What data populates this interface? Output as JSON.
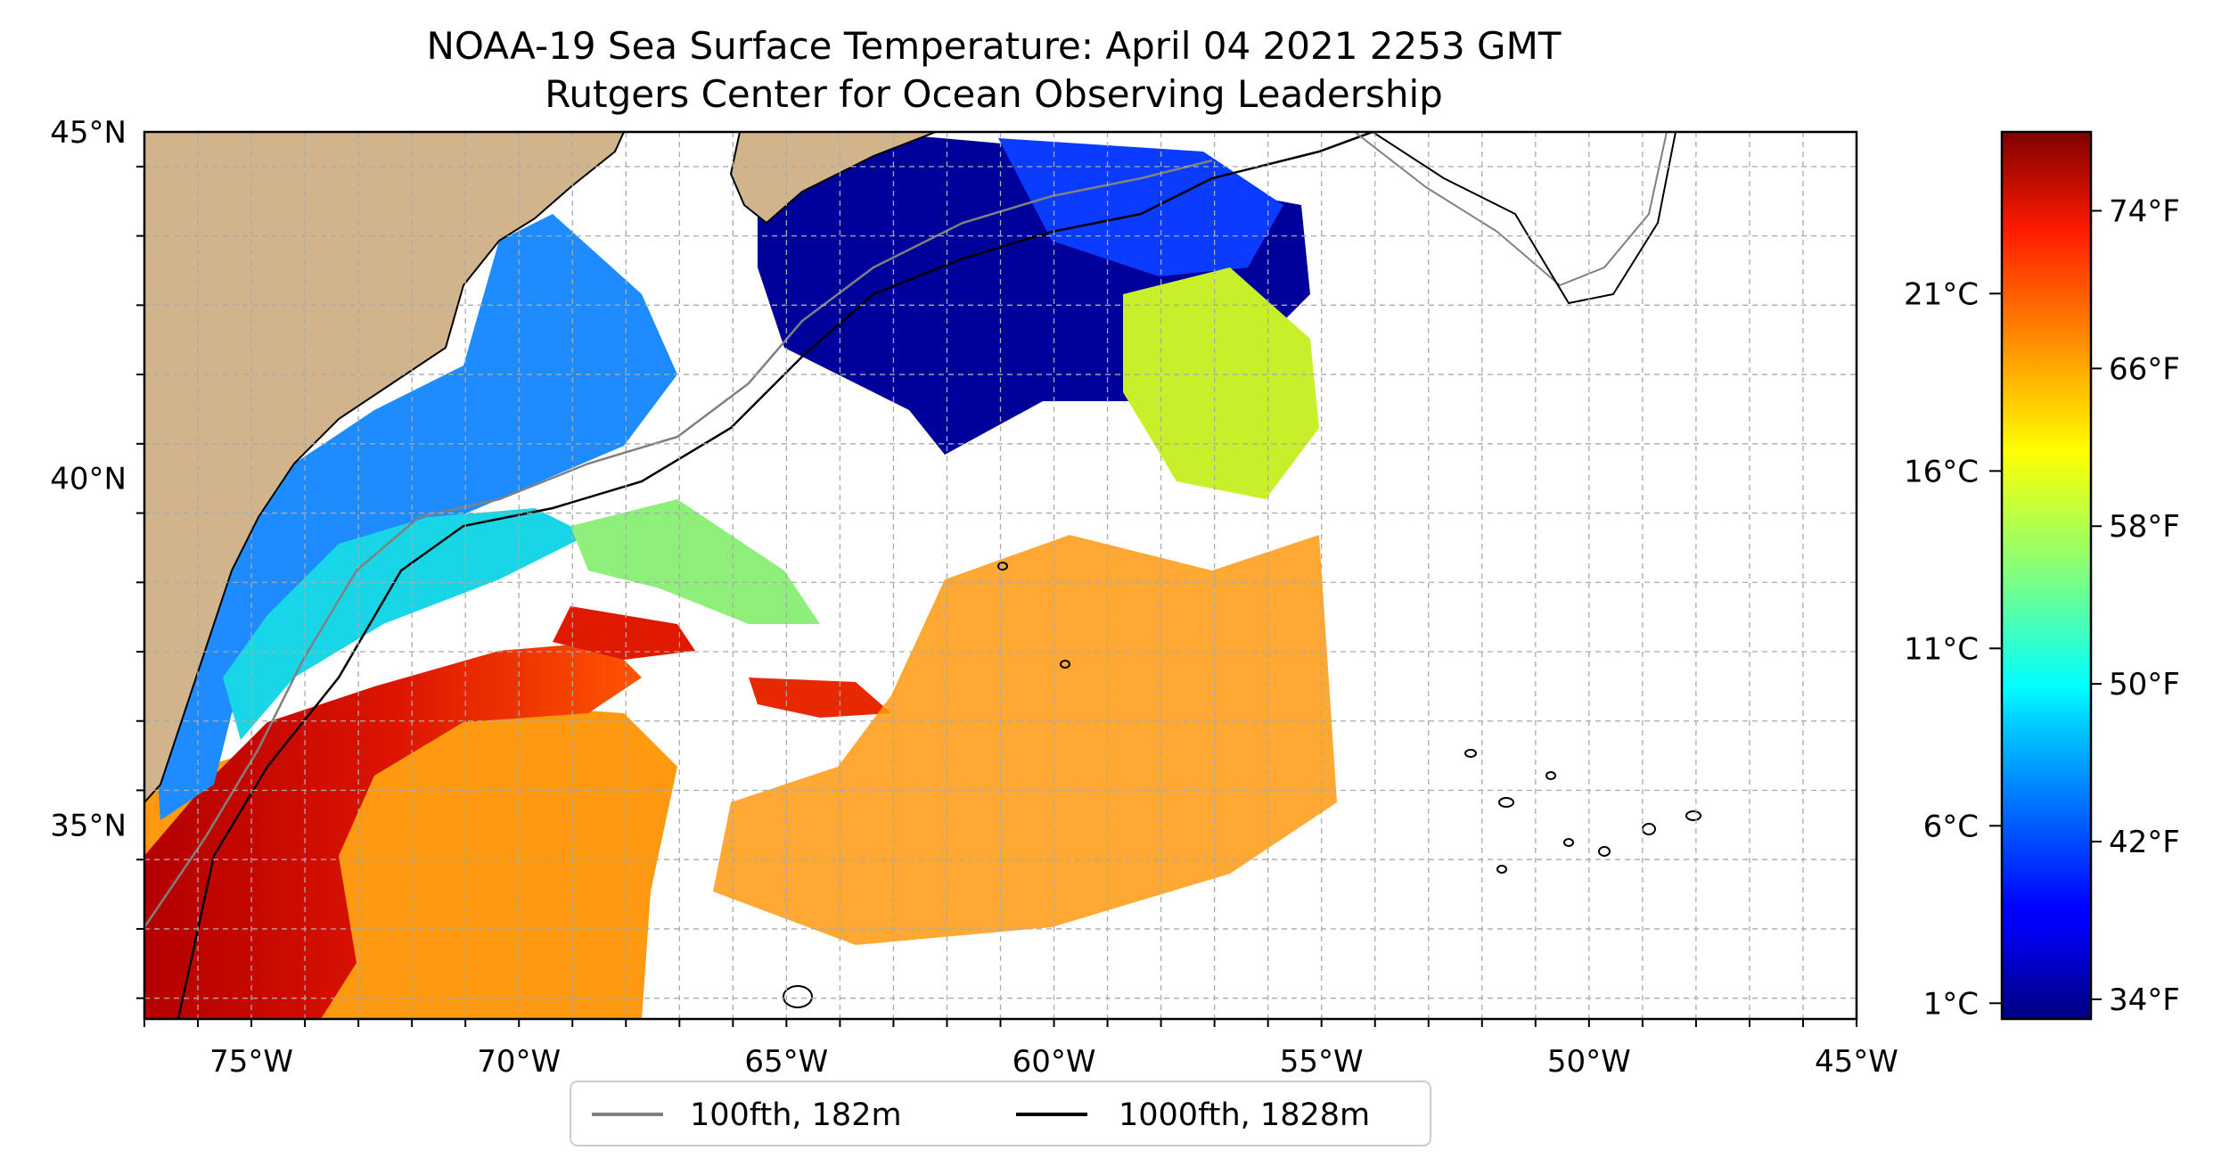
{
  "title_line1": "NOAA-19 Sea Surface Temperature: April 04 2021 2253 GMT",
  "title_line2": "Rutgers Center for Ocean Observing Leadership",
  "map": {
    "lon_range": [
      -77,
      -45
    ],
    "lat_range": [
      32.2,
      45
    ],
    "lon_ticks": [
      "75°W",
      "70°W",
      "65°W",
      "60°W",
      "55°W",
      "50°W",
      "45°W"
    ],
    "lon_tick_values": [
      -75,
      -70,
      -65,
      -60,
      -55,
      -50,
      -45
    ],
    "lat_ticks": [
      "45°N",
      "40°N",
      "35°N"
    ],
    "lat_tick_values": [
      45,
      40,
      35
    ],
    "gridlines": true,
    "land_color": "#d2b48c"
  },
  "legend": {
    "placement": "bottom-center",
    "items": [
      {
        "label": "100fth, 182m",
        "color": "#808080"
      },
      {
        "label": "1000fth, 1828m",
        "color": "#000000"
      }
    ]
  },
  "colorbar": {
    "colormap": "jet",
    "celsius_ticks": [
      "21°C",
      "16°C",
      "11°C",
      "6°C",
      "1°C"
    ],
    "celsius_values": [
      21,
      16,
      11,
      6,
      1
    ],
    "fahrenheit_ticks": [
      "74°F",
      "66°F",
      "58°F",
      "50°F",
      "42°F",
      "34°F"
    ],
    "fahrenheit_values": [
      74,
      66,
      58,
      50,
      42,
      34
    ],
    "range_f": [
      33,
      78
    ]
  }
}
